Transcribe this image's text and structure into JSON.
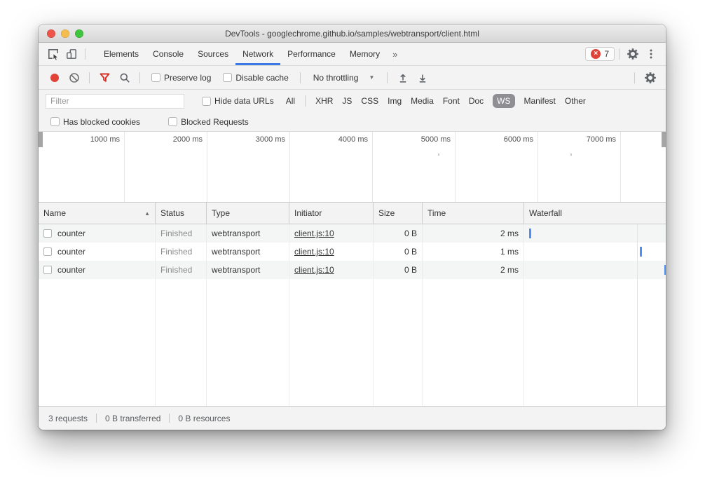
{
  "window": {
    "title": "DevTools - googlechrome.github.io/samples/webtransport/client.html"
  },
  "tabbar": {
    "tabs": [
      "Elements",
      "Console",
      "Sources",
      "Network",
      "Performance",
      "Memory"
    ],
    "active": "Network",
    "error_count": "7"
  },
  "toolbar": {
    "preserve_log": "Preserve log",
    "disable_cache": "Disable cache",
    "throttling": "No throttling"
  },
  "filterbar": {
    "placeholder": "Filter",
    "hide_data_urls": "Hide data URLs",
    "types": [
      "All",
      "XHR",
      "JS",
      "CSS",
      "Img",
      "Media",
      "Font",
      "Doc",
      "WS",
      "Manifest",
      "Other"
    ],
    "selected": "WS",
    "has_blocked_cookies": "Has blocked cookies",
    "blocked_requests": "Blocked Requests"
  },
  "overview": {
    "ticks": [
      "1000 ms",
      "2000 ms",
      "3000 ms",
      "4000 ms",
      "5000 ms",
      "6000 ms",
      "7000 ms"
    ],
    "marker_ms": [
      4800,
      6400
    ]
  },
  "table": {
    "columns": [
      "Name",
      "Status",
      "Type",
      "Initiator",
      "Size",
      "Time",
      "Waterfall"
    ],
    "sorted_by": "Name",
    "rows": [
      {
        "name": "counter",
        "status": "Finished",
        "type": "webtransport",
        "initiator": "client.js:10",
        "size": "0 B",
        "time": "2 ms",
        "waterfall_pos_pct": 3.5
      },
      {
        "name": "counter",
        "status": "Finished",
        "type": "webtransport",
        "initiator": "client.js:10",
        "size": "0 B",
        "time": "1 ms",
        "waterfall_pos_pct": 81.5
      },
      {
        "name": "counter",
        "status": "Finished",
        "type": "webtransport",
        "initiator": "client.js:10",
        "size": "0 B",
        "time": "2 ms",
        "waterfall_pos_pct": 99.0
      }
    ]
  },
  "summary": {
    "requests": "3 requests",
    "transferred": "0 B transferred",
    "resources": "0 B resources"
  },
  "icons": {
    "sort_asc": "▲",
    "dropdown": "▼",
    "more_tabs": "»",
    "error_x": "×"
  },
  "colors": {
    "accent_blue": "#3b78e7",
    "record_red": "#e04438",
    "filter_red": "#d93025",
    "error_red": "#e04339",
    "ws_chip_bg": "#8e8e93",
    "waterfall_bar": "#4d8ef7"
  }
}
